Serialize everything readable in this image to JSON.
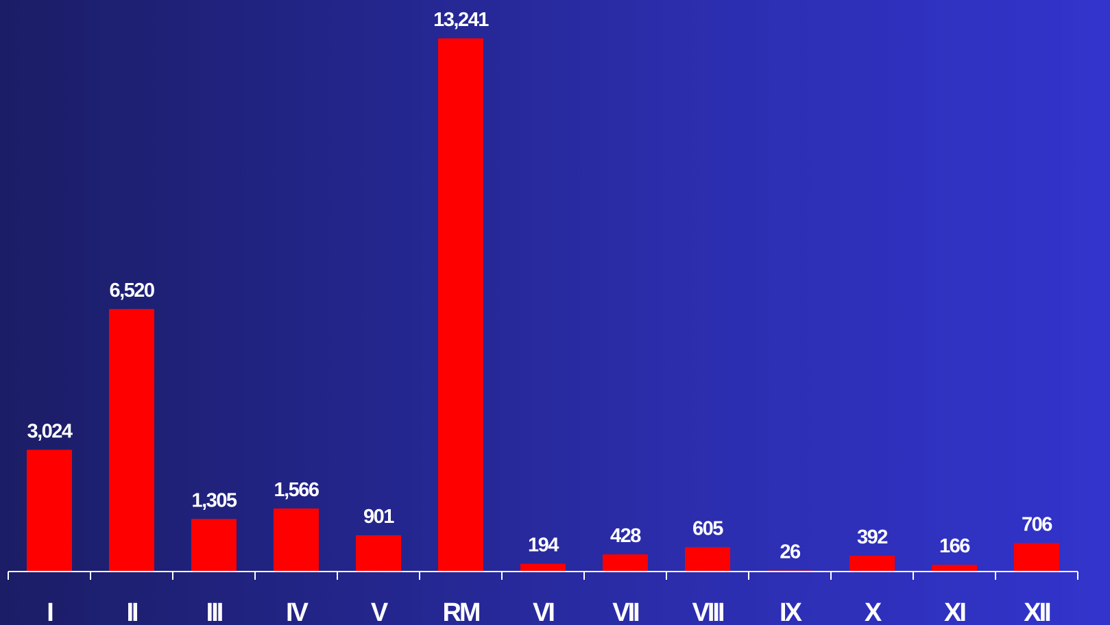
{
  "chart_data": {
    "type": "bar",
    "categories": [
      "I",
      "II",
      "III",
      "IV",
      "V",
      "RM",
      "VI",
      "VII",
      "VIII",
      "IX",
      "X",
      "XI",
      "XII"
    ],
    "values": [
      3024,
      6520,
      1305,
      1566,
      901,
      13241,
      194,
      428,
      605,
      26,
      392,
      166,
      706
    ],
    "value_labels": [
      "3,024",
      "6,520",
      "1,305",
      "1,566",
      "901",
      "13,241",
      "194",
      "428",
      "605",
      "26",
      "392",
      "166",
      "706"
    ],
    "title": "",
    "xlabel": "",
    "ylabel": "",
    "ylim": [
      0,
      13241
    ],
    "grid": false,
    "legend": "none",
    "colors": {
      "bar": "#ff0000",
      "axis": "#ffffff",
      "text": "#ffffff",
      "background_start": "#1b1d66",
      "background_end": "#3234cc"
    }
  }
}
